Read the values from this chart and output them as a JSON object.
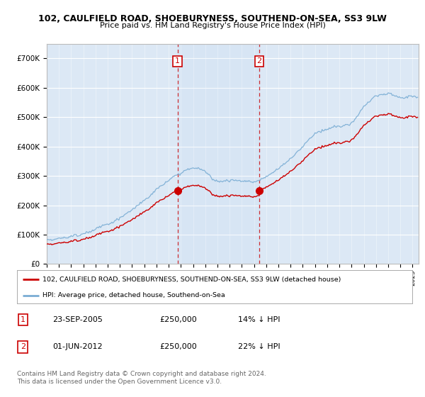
{
  "title_line1": "102, CAULFIELD ROAD, SHOEBURYNESS, SOUTHEND-ON-SEA, SS3 9LW",
  "title_line2": "Price paid vs. HM Land Registry's House Price Index (HPI)",
  "ylim": [
    0,
    750000
  ],
  "yticks": [
    0,
    100000,
    200000,
    300000,
    400000,
    500000,
    600000,
    700000
  ],
  "ytick_labels": [
    "£0",
    "£100K",
    "£200K",
    "£300K",
    "£400K",
    "£500K",
    "£600K",
    "£700K"
  ],
  "transaction1": {
    "date": 2005.73,
    "price": 250000,
    "label": "1"
  },
  "transaction2": {
    "date": 2012.42,
    "price": 250000,
    "label": "2"
  },
  "legend_red": "102, CAULFIELD ROAD, SHOEBURYNESS, SOUTHEND-ON-SEA, SS3 9LW (detached house)",
  "legend_blue": "HPI: Average price, detached house, Southend-on-Sea",
  "table_row1": [
    "1",
    "23-SEP-2005",
    "£250,000",
    "14% ↓ HPI"
  ],
  "table_row2": [
    "2",
    "01-JUN-2012",
    "£250,000",
    "22% ↓ HPI"
  ],
  "footer": "Contains HM Land Registry data © Crown copyright and database right 2024.\nThis data is licensed under the Open Government Licence v3.0.",
  "background_color": "#ffffff",
  "plot_bg_color": "#dce8f5",
  "red_color": "#cc0000",
  "blue_color": "#7aadd4",
  "grid_color": "#ffffff"
}
